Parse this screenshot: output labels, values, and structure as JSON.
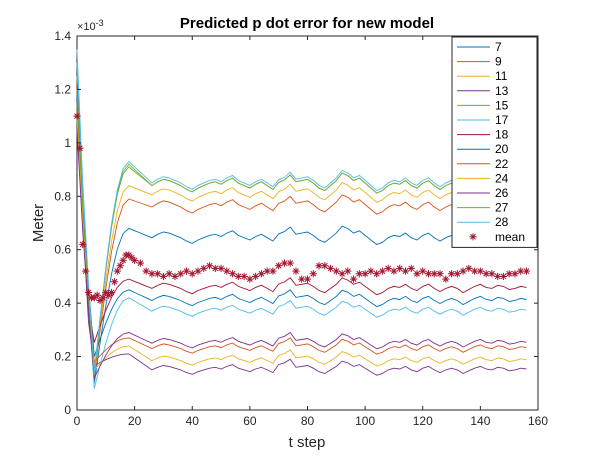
{
  "chart_data": {
    "type": "line",
    "title": "Predicted p dot error for new model",
    "xlabel": "t step",
    "ylabel": "Meter",
    "y_multiplier_label": "×10",
    "y_multiplier_exponent": "-3",
    "xlim": [
      0,
      160
    ],
    "ylim": [
      0,
      1.4
    ],
    "x_ticks": [
      0,
      20,
      40,
      60,
      80,
      100,
      120,
      140,
      160
    ],
    "x_tick_labels": [
      "0",
      "20",
      "40",
      "60",
      "80",
      "100",
      "120",
      "140",
      "160"
    ],
    "y_ticks": [
      0,
      0.2,
      0.4,
      0.6,
      0.8,
      1.0,
      1.2,
      1.4
    ],
    "y_tick_labels": [
      "0",
      "0.2",
      "0.4",
      "0.6",
      "0.8",
      "1",
      "1.2",
      "1.4"
    ],
    "grid": false,
    "legend_placement": "top-right",
    "x_last": 156,
    "notes_units": "y values in units of 10^-3 m",
    "series": [
      {
        "name": "7",
        "color": "#0072bd",
        "start": 1.1,
        "min": 0.1,
        "min_x": 6,
        "level": 0.645,
        "peak": 0.68
      },
      {
        "name": "9",
        "color": "#d95319",
        "start": 1.12,
        "min": 0.12,
        "min_x": 6,
        "level": 0.76,
        "peak": 0.79
      },
      {
        "name": "11",
        "color": "#edb120",
        "start": 1.15,
        "min": 0.13,
        "min_x": 6,
        "level": 0.805,
        "peak": 0.84
      },
      {
        "name": "13",
        "color": "#7e2f8e",
        "start": 1.2,
        "min": 0.16,
        "min_x": 5,
        "level": 0.15,
        "peak": 0.21
      },
      {
        "name": "15",
        "color": "#77ac30",
        "start": 1.25,
        "min": 0.14,
        "min_x": 6,
        "level": 0.84,
        "peak": 0.91
      },
      {
        "name": "17",
        "color": "#4dbeee",
        "start": 1.3,
        "min": 0.08,
        "min_x": 6,
        "level": 0.37,
        "peak": 0.42
      },
      {
        "name": "18",
        "color": "#a2142f",
        "start": 1.22,
        "min": 0.22,
        "min_x": 5,
        "level": 0.455,
        "peak": 0.49
      },
      {
        "name": "20",
        "color": "#0072bd",
        "start": 1.15,
        "min": 0.2,
        "min_x": 6,
        "level": 0.41,
        "peak": 0.45
      },
      {
        "name": "22",
        "color": "#d95319",
        "start": 1.12,
        "min": 0.18,
        "min_x": 6,
        "level": 0.23,
        "peak": 0.27
      },
      {
        "name": "24",
        "color": "#edb120",
        "start": 1.1,
        "min": 0.15,
        "min_x": 6,
        "level": 0.185,
        "peak": 0.24
      },
      {
        "name": "26",
        "color": "#7e2f8e",
        "start": 1.05,
        "min": 0.12,
        "min_x": 6,
        "level": 0.25,
        "peak": 0.29
      },
      {
        "name": "27",
        "color": "#77ac30",
        "start": 1.2,
        "min": 0.13,
        "min_x": 6,
        "level": 0.84,
        "peak": 0.92
      },
      {
        "name": "28",
        "color": "#4dbeee",
        "start": 1.35,
        "min": 0.14,
        "min_x": 6,
        "level": 0.85,
        "peak": 0.93
      }
    ],
    "mean": {
      "name": "mean",
      "color": "#a2142f",
      "marker": "asterisk",
      "points": [
        [
          0,
          1.1
        ],
        [
          1,
          0.98
        ],
        [
          2,
          0.62
        ],
        [
          3,
          0.52
        ],
        [
          4,
          0.44
        ],
        [
          5,
          0.42
        ],
        [
          6,
          0.42
        ],
        [
          7,
          0.43
        ],
        [
          8,
          0.41
        ],
        [
          9,
          0.42
        ],
        [
          10,
          0.44
        ],
        [
          11,
          0.43
        ],
        [
          12,
          0.44
        ],
        [
          13,
          0.48
        ],
        [
          14,
          0.52
        ],
        [
          15,
          0.54
        ],
        [
          16,
          0.56
        ],
        [
          17,
          0.58
        ],
        [
          18,
          0.58
        ],
        [
          19,
          0.57
        ],
        [
          20,
          0.56
        ],
        [
          22,
          0.55
        ],
        [
          24,
          0.52
        ],
        [
          26,
          0.51
        ],
        [
          28,
          0.51
        ],
        [
          30,
          0.5
        ],
        [
          32,
          0.51
        ],
        [
          34,
          0.5
        ],
        [
          36,
          0.51
        ],
        [
          38,
          0.52
        ],
        [
          40,
          0.51
        ],
        [
          42,
          0.52
        ],
        [
          44,
          0.53
        ],
        [
          46,
          0.54
        ],
        [
          48,
          0.53
        ],
        [
          50,
          0.53
        ],
        [
          52,
          0.52
        ],
        [
          54,
          0.51
        ],
        [
          56,
          0.5
        ],
        [
          58,
          0.5
        ],
        [
          60,
          0.49
        ],
        [
          62,
          0.5
        ],
        [
          64,
          0.51
        ],
        [
          66,
          0.52
        ],
        [
          68,
          0.52
        ],
        [
          70,
          0.54
        ],
        [
          72,
          0.55
        ],
        [
          74,
          0.55
        ],
        [
          76,
          0.52
        ],
        [
          78,
          0.49
        ],
        [
          80,
          0.49
        ],
        [
          82,
          0.51
        ],
        [
          84,
          0.54
        ],
        [
          86,
          0.54
        ],
        [
          88,
          0.53
        ],
        [
          90,
          0.52
        ],
        [
          92,
          0.51
        ],
        [
          94,
          0.52
        ],
        [
          96,
          0.49
        ],
        [
          98,
          0.51
        ],
        [
          100,
          0.51
        ],
        [
          102,
          0.52
        ],
        [
          104,
          0.51
        ],
        [
          106,
          0.52
        ],
        [
          108,
          0.53
        ],
        [
          110,
          0.52
        ],
        [
          112,
          0.53
        ],
        [
          114,
          0.52
        ],
        [
          116,
          0.53
        ],
        [
          118,
          0.51
        ],
        [
          120,
          0.52
        ],
        [
          122,
          0.51
        ],
        [
          124,
          0.51
        ],
        [
          126,
          0.51
        ],
        [
          128,
          0.49
        ],
        [
          130,
          0.51
        ],
        [
          132,
          0.51
        ],
        [
          134,
          0.52
        ],
        [
          136,
          0.53
        ],
        [
          138,
          0.52
        ],
        [
          140,
          0.52
        ],
        [
          142,
          0.51
        ],
        [
          144,
          0.51
        ],
        [
          146,
          0.5
        ],
        [
          148,
          0.5
        ],
        [
          150,
          0.51
        ],
        [
          152,
          0.51
        ],
        [
          154,
          0.52
        ],
        [
          156,
          0.52
        ]
      ]
    },
    "wiggle_profile": [
      0.0,
      0.005,
      0.01,
      0.0,
      -0.015,
      -0.02,
      -0.01,
      0.0,
      0.01,
      0.0,
      -0.02,
      -0.03,
      -0.015,
      0.0,
      0.015,
      0.025,
      0.02,
      0.01,
      0.0,
      -0.015,
      -0.025,
      -0.01,
      0.0,
      0.01,
      0.015,
      0.005,
      0.02,
      0.03,
      0.01,
      0.0,
      -0.01,
      0.005,
      0.015,
      0.0,
      -0.015,
      -0.03,
      -0.02,
      0.0,
      0.015,
      0.02,
      0.025,
      0.01,
      -0.01,
      -0.02,
      0.0,
      0.02,
      0.05,
      0.04,
      0.02,
      0.03,
      0.01,
      -0.01,
      -0.03,
      -0.02,
      0.0,
      0.01,
      0.005,
      0.02,
      0.0,
      -0.01,
      0.01,
      0.02,
      0.0,
      -0.015,
      0.0,
      0.01,
      0.0,
      -0.02,
      -0.005,
      0.01,
      0.02,
      0.005,
      0.0,
      0.015,
      0.01,
      -0.005,
      0.0,
      0.01,
      0.005,
      0.0
    ]
  }
}
